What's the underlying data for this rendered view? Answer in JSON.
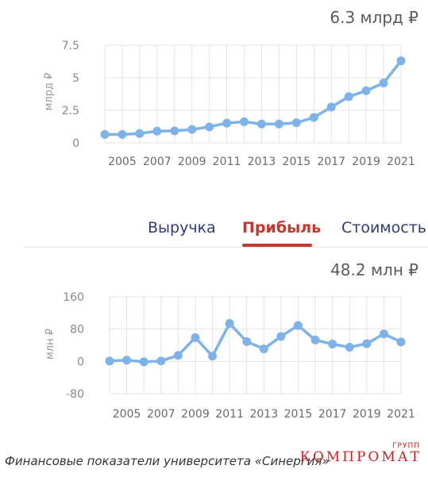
{
  "charts": [
    {
      "big_value": "6.3 млрд ₽",
      "ylabel": "млрд ₽"
    },
    {
      "big_value": "48.2 млн ₽",
      "ylabel": "млн ₽"
    }
  ],
  "tabs": {
    "revenue": "Выручка",
    "profit": "Прибыль",
    "value": "Стоимость",
    "active": "profit"
  },
  "caption": "Финансовые показатели университета «Синергия»",
  "watermark": {
    "main": "КОМПРОМАТ",
    "small": "ГРУПП"
  },
  "colors": {
    "line": "#7db3e8",
    "grid": "#e3e3e3",
    "tab_active": "#c8372d",
    "tab_inactive": "#2f3a78"
  },
  "chart_data": [
    {
      "type": "line",
      "ylabel": "млрд ₽",
      "x": [
        2004,
        2005,
        2006,
        2007,
        2008,
        2009,
        2010,
        2011,
        2012,
        2013,
        2014,
        2015,
        2016,
        2017,
        2018,
        2019,
        2020,
        2021
      ],
      "values": [
        0.65,
        0.65,
        0.72,
        0.9,
        0.92,
        1.03,
        1.23,
        1.52,
        1.62,
        1.45,
        1.45,
        1.55,
        1.95,
        2.75,
        3.55,
        4.0,
        4.6,
        6.3
      ],
      "xticks": [
        "2005",
        "2007",
        "2009",
        "2011",
        "2013",
        "2015",
        "2017",
        "2019",
        "2021"
      ],
      "yticks": [
        "0",
        "2.5",
        "5",
        "7.5"
      ],
      "ylim": [
        0,
        7.5
      ],
      "grid": true
    },
    {
      "type": "line",
      "ylabel": "млн ₽",
      "x": [
        2004,
        2005,
        2006,
        2007,
        2008,
        2009,
        2010,
        2011,
        2012,
        2013,
        2014,
        2015,
        2016,
        2017,
        2018,
        2019,
        2020,
        2021
      ],
      "values": [
        1,
        3,
        -1,
        1,
        15,
        59,
        13,
        94,
        49,
        31,
        62,
        89,
        53,
        43,
        35,
        44,
        68,
        48.2
      ],
      "xticks": [
        "2005",
        "2007",
        "2009",
        "2011",
        "2013",
        "2015",
        "2017",
        "2019",
        "2021"
      ],
      "yticks": [
        "-80",
        "0",
        "80",
        "160"
      ],
      "ylim": [
        -80,
        160
      ],
      "grid": true
    }
  ]
}
